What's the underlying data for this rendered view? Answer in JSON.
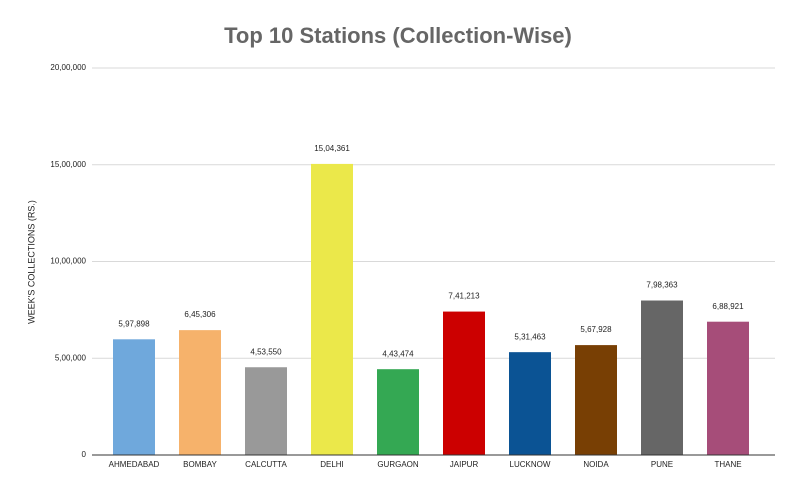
{
  "chart_data": {
    "type": "bar",
    "title": "Top 10 Stations (Collection-Wise)",
    "y_label": "WEEK'S COLLECTIONS (RS.)",
    "categories": [
      "AHMEDABAD",
      "BOMBAY",
      "CALCUTTA",
      "DELHI",
      "GURGAON",
      "JAIPUR",
      "LUCKNOW",
      "NOIDA",
      "PUNE",
      "THANE"
    ],
    "values": [
      597898,
      645306,
      453550,
      1504361,
      443474,
      741213,
      531463,
      567928,
      798363,
      688921
    ],
    "value_labels": [
      "5,97,898",
      "6,45,306",
      "4,53,550",
      "15,04,361",
      "4,43,474",
      "7,41,213",
      "5,31,463",
      "5,67,928",
      "7,98,363",
      "6,88,921"
    ],
    "colors": [
      "#6fa8dc",
      "#f6b26b",
      "#999999",
      "#ebe84a",
      "#34a853",
      "#cc0000",
      "#0b5394",
      "#783f04",
      "#666666",
      "#a64d79"
    ],
    "ylim": [
      0,
      2000000
    ],
    "yticks": [
      0,
      {
        "value": 500000,
        "label": "5,00,000"
      },
      {
        "value": 1000000,
        "label": "10,00,000"
      },
      {
        "value": 1500000,
        "label": "15,00,000"
      },
      {
        "value": 2000000,
        "label": "20,00,000"
      }
    ],
    "grid": true
  }
}
